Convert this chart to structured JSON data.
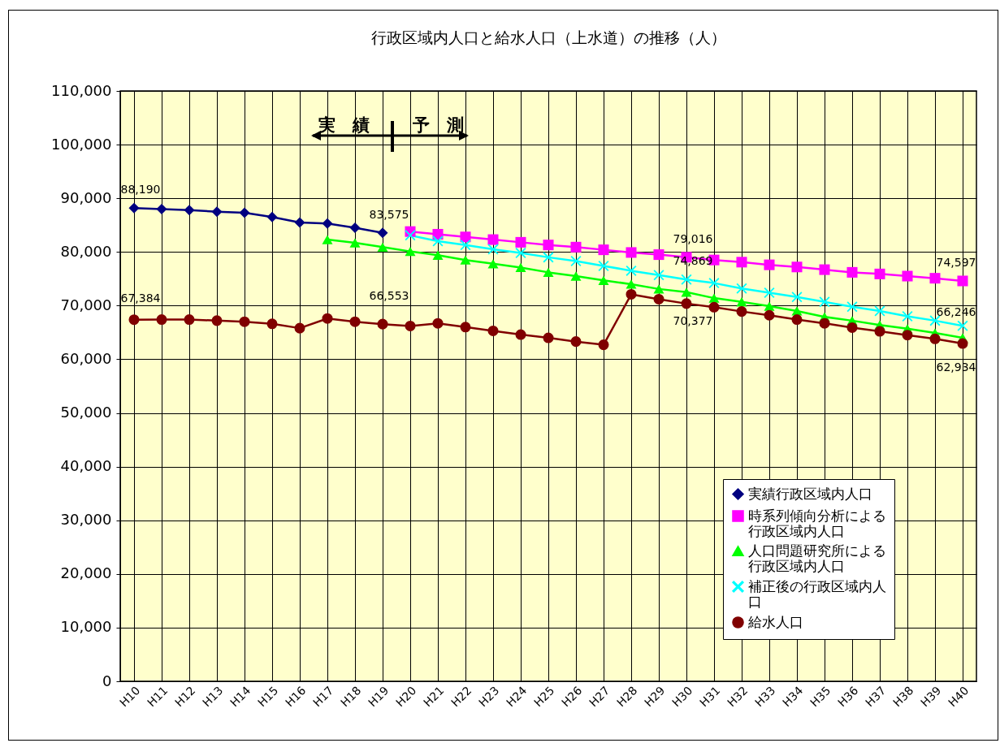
{
  "chart_data": {
    "type": "line",
    "title": "行政区域内人口と給水人口（上水道）の推移（人）",
    "categories": [
      "H10",
      "H11",
      "H12",
      "H13",
      "H14",
      "H15",
      "H16",
      "H17",
      "H18",
      "H19",
      "H20",
      "H21",
      "H22",
      "H23",
      "H24",
      "H25",
      "H26",
      "H27",
      "H28",
      "H29",
      "H30",
      "H31",
      "H32",
      "H33",
      "H34",
      "H35",
      "H36",
      "H37",
      "H38",
      "H39",
      "H40"
    ],
    "series": [
      {
        "name": "実績行政区域内人口",
        "color": "#000080",
        "marker": "diamond",
        "values": [
          88190,
          88000,
          87800,
          87500,
          87300,
          86500,
          85500,
          85300,
          84500,
          83575,
          null,
          null,
          null,
          null,
          null,
          null,
          null,
          null,
          null,
          null,
          null,
          null,
          null,
          null,
          null,
          null,
          null,
          null,
          null,
          null,
          null
        ],
        "value_labels": [
          "88,190",
          null,
          null,
          null,
          null,
          null,
          null,
          null,
          null,
          "83,575",
          null,
          null,
          null,
          null,
          null,
          null,
          null,
          null,
          null,
          null,
          null,
          null,
          null,
          null,
          null,
          null,
          null,
          null,
          null,
          null,
          null
        ]
      },
      {
        "name": "時系列傾向分析による行政区域内人口",
        "color": "#ff00ff",
        "marker": "square",
        "values": [
          null,
          null,
          null,
          null,
          null,
          null,
          null,
          null,
          null,
          null,
          83800,
          83300,
          82800,
          82300,
          81800,
          81300,
          80900,
          80400,
          79900,
          79500,
          79016,
          78500,
          78100,
          77600,
          77200,
          76700,
          76200,
          75900,
          75500,
          75100,
          74597
        ],
        "value_labels": [
          null,
          null,
          null,
          null,
          null,
          null,
          null,
          null,
          null,
          null,
          null,
          null,
          null,
          null,
          null,
          null,
          null,
          null,
          null,
          null,
          "79,016",
          null,
          null,
          null,
          null,
          null,
          null,
          null,
          null,
          null,
          "74,597"
        ]
      },
      {
        "name": "人口問題研究所による行政区域内人口",
        "color": "#00ff00",
        "marker": "triangle",
        "values": [
          null,
          null,
          null,
          null,
          null,
          null,
          null,
          82300,
          81700,
          80900,
          80100,
          79400,
          78500,
          77800,
          77100,
          76200,
          75500,
          74700,
          74000,
          73100,
          72500,
          71400,
          70700,
          69900,
          69000,
          67900,
          67200,
          66400,
          65700,
          64900,
          64000
        ]
      },
      {
        "name": "補正後の行政区域内人口",
        "color": "#00ffff",
        "marker": "cross",
        "values": [
          null,
          null,
          null,
          null,
          null,
          null,
          null,
          null,
          null,
          null,
          83100,
          82000,
          81300,
          80500,
          79800,
          79000,
          78300,
          77400,
          76500,
          75700,
          74869,
          74200,
          73200,
          72400,
          71600,
          70700,
          69800,
          69000,
          68000,
          67200,
          66246
        ],
        "value_labels": [
          null,
          null,
          null,
          null,
          null,
          null,
          null,
          null,
          null,
          null,
          null,
          null,
          null,
          null,
          null,
          null,
          null,
          null,
          null,
          null,
          "74,869",
          null,
          null,
          null,
          null,
          null,
          null,
          null,
          null,
          null,
          "66,246"
        ]
      },
      {
        "name": "給水人口",
        "color": "#800000",
        "marker": "circle",
        "values": [
          67384,
          67400,
          67400,
          67200,
          67000,
          66600,
          65800,
          67600,
          67000,
          66553,
          66200,
          66700,
          66000,
          65300,
          64600,
          64000,
          63300,
          62700,
          72100,
          71200,
          70377,
          69700,
          68900,
          68200,
          67400,
          66700,
          65900,
          65200,
          64500,
          63800,
          62934
        ],
        "value_labels": [
          "67,384",
          null,
          null,
          null,
          null,
          null,
          null,
          null,
          null,
          "66,553",
          null,
          null,
          null,
          null,
          null,
          null,
          null,
          null,
          null,
          null,
          "70,377",
          null,
          null,
          null,
          null,
          null,
          null,
          null,
          null,
          null,
          "62,934"
        ]
      }
    ],
    "ylim": [
      0,
      110000
    ],
    "yticks": [
      0,
      {
        "value": 10000,
        "label": "10,000"
      },
      {
        "value": 20000,
        "label": "20,000"
      },
      {
        "value": 30000,
        "label": "30,000"
      },
      {
        "value": 40000,
        "label": "40,000"
      },
      {
        "value": 50000,
        "label": "50,000"
      },
      {
        "value": 60000,
        "label": "60,000"
      },
      {
        "value": 70000,
        "label": "70,000"
      },
      {
        "value": 80000,
        "label": "80,000"
      },
      {
        "value": 90000,
        "label": "90,000"
      },
      {
        "value": 100000,
        "label": "100,000"
      },
      {
        "value": 110000,
        "label": "110,000"
      }
    ],
    "grid": true,
    "legend": "bottom right",
    "line_style": "solid",
    "annotations": [
      "実　績",
      "予　測"
    ]
  }
}
